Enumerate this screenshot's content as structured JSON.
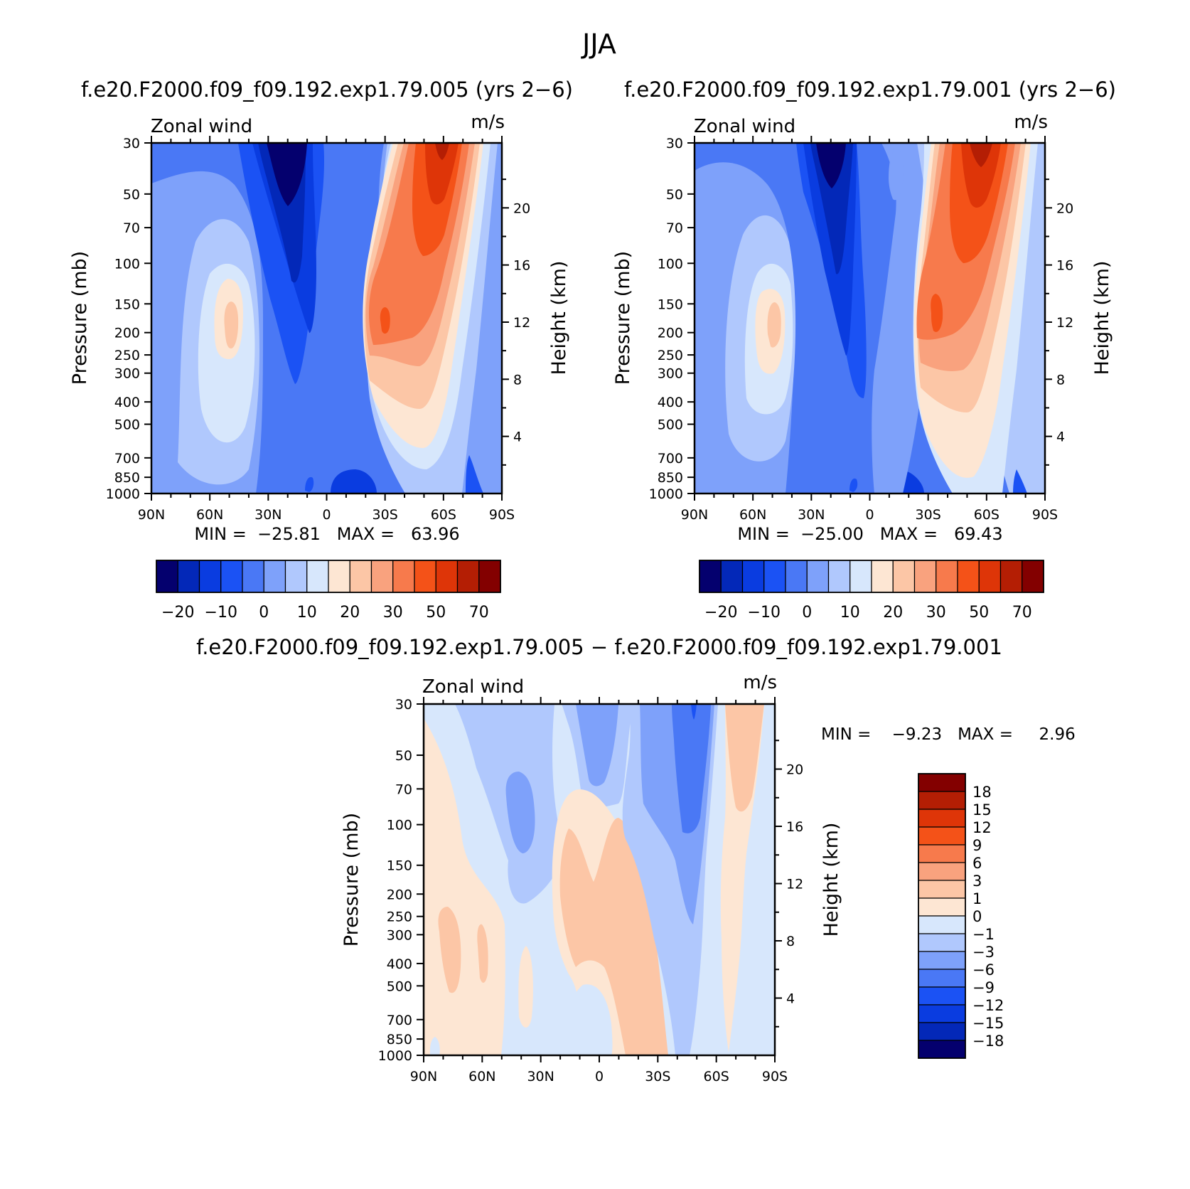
{
  "title": "JJA",
  "colors": {
    "abs": [
      "#04006e",
      "#0328b8",
      "#0a3ce0",
      "#1b52f4",
      "#4a78f5",
      "#7ea1fa",
      "#b0c8fd",
      "#d7e7fc",
      "#fde6d3",
      "#fcc6a6",
      "#f9a27e",
      "#f77a4c",
      "#f45218",
      "#de3508",
      "#b41e04",
      "#830000"
    ],
    "diff": [
      "#04006e",
      "#0328b8",
      "#0a3ce0",
      "#1b52f4",
      "#4a78f5",
      "#7ea1fa",
      "#b0c8fd",
      "#d7e7fc",
      "#fde6d3",
      "#fcc6a6",
      "#f9a27e",
      "#f77a4c",
      "#f45218",
      "#de3508",
      "#b41e04",
      "#830000"
    ]
  },
  "panels": [
    {
      "id": "p1",
      "case_title": "f.e20.F2000.f09_f09.192.exp1.79.005 (yrs 2−6)",
      "left_label": "Zonal wind",
      "right_label": "m/s",
      "min_max": "MIN =  −25.81   MAX =   63.96"
    },
    {
      "id": "p2",
      "case_title": "f.e20.F2000.f09_f09.192.exp1.79.001 (yrs 2−6)",
      "left_label": "Zonal wind",
      "right_label": "m/s",
      "min_max": "MIN =  −25.00   MAX =   69.43"
    },
    {
      "id": "p3",
      "case_title": "f.e20.F2000.f09_f09.192.exp1.79.005 − f.e20.F2000.f09_f09.192.exp1.79.001",
      "left_label": "Zonal wind",
      "right_label": "m/s",
      "min_max": "MIN =    −9.23   MAX =     2.96"
    }
  ],
  "chart_data": [
    {
      "type": "heatmap",
      "title": "f.e20.F2000.f09_f09.192.exp1.79.005 (yrs 2−6)",
      "xlabel": "",
      "ylabel": "Pressure (mb)",
      "ylabel_right": "Height (km)",
      "x_ticks": [
        "90N",
        "60N",
        "30N",
        "0",
        "30S",
        "60S",
        "90S"
      ],
      "y_ticks": [
        "30",
        "50",
        "70",
        "100",
        "150",
        "200",
        "250",
        "300",
        "400",
        "500",
        "700",
        "850",
        "1000"
      ],
      "y_ticks_right": [
        "4",
        "8",
        "12",
        "16",
        "20"
      ],
      "xlim": [
        -90,
        90
      ],
      "ylim": [
        1000,
        30
      ],
      "y_scale": "log",
      "colorbar_ticks": [
        "−20",
        "−10",
        "0",
        "10",
        "20",
        "30",
        "50",
        "70"
      ],
      "contour_levels": [
        -25,
        -20,
        -15,
        -10,
        -5,
        0,
        5,
        10,
        15,
        20,
        25,
        30,
        40,
        50,
        60,
        70
      ],
      "min": -25.81,
      "max": 63.96,
      "features": [
        {
          "lat": -18,
          "p": 30,
          "value": -25
        },
        {
          "lat": 5,
          "p": 30,
          "value": -15
        },
        {
          "lat": 15,
          "p": 700,
          "value": -12
        },
        {
          "lat": 45,
          "p": 200,
          "value": 22
        },
        {
          "lat": -28,
          "p": 200,
          "value": 40
        },
        {
          "lat": -55,
          "p": 30,
          "value": 63
        }
      ]
    },
    {
      "type": "heatmap",
      "title": "f.e20.F2000.f09_f09.192.exp1.79.001 (yrs 2−6)",
      "xlabel": "",
      "ylabel": "Pressure (mb)",
      "ylabel_right": "Height (km)",
      "x_ticks": [
        "90N",
        "60N",
        "30N",
        "0",
        "30S",
        "60S",
        "90S"
      ],
      "y_ticks": [
        "30",
        "50",
        "70",
        "100",
        "150",
        "200",
        "250",
        "300",
        "400",
        "500",
        "700",
        "850",
        "1000"
      ],
      "y_ticks_right": [
        "4",
        "8",
        "12",
        "16",
        "20"
      ],
      "xlim": [
        -90,
        90
      ],
      "ylim": [
        1000,
        30
      ],
      "y_scale": "log",
      "colorbar_ticks": [
        "−20",
        "−10",
        "0",
        "10",
        "20",
        "30",
        "50",
        "70"
      ],
      "contour_levels": [
        -25,
        -20,
        -15,
        -10,
        -5,
        0,
        5,
        10,
        15,
        20,
        25,
        30,
        40,
        50,
        60,
        70
      ],
      "min": -25.0,
      "max": 69.43,
      "features": [
        {
          "lat": -18,
          "p": 30,
          "value": -25
        },
        {
          "lat": 45,
          "p": 200,
          "value": 21
        },
        {
          "lat": -30,
          "p": 200,
          "value": 55
        },
        {
          "lat": -55,
          "p": 30,
          "value": 69
        }
      ]
    },
    {
      "type": "heatmap",
      "title": "f.e20.F2000.f09_f09.192.exp1.79.005 − f.e20.F2000.f09_f09.192.exp1.79.001",
      "xlabel": "",
      "ylabel": "Pressure (mb)",
      "ylabel_right": "Height (km)",
      "x_ticks": [
        "90N",
        "60N",
        "30N",
        "0",
        "30S",
        "60S",
        "90S"
      ],
      "y_ticks": [
        "30",
        "50",
        "70",
        "100",
        "150",
        "200",
        "250",
        "300",
        "400",
        "500",
        "700",
        "850",
        "1000"
      ],
      "y_ticks_right": [
        "4",
        "8",
        "12",
        "16",
        "20"
      ],
      "xlim": [
        -90,
        90
      ],
      "ylim": [
        1000,
        30
      ],
      "y_scale": "log",
      "colorbar_ticks": [
        "18",
        "15",
        "12",
        "9",
        "6",
        "3",
        "1",
        "0",
        "−1",
        "−3",
        "−6",
        "−9",
        "−12",
        "−15",
        "−18"
      ],
      "contour_levels": [
        -18,
        -15,
        -12,
        -9,
        -6,
        -3,
        -1,
        0,
        1,
        3,
        6,
        9,
        12,
        15,
        18
      ],
      "min": -9.23,
      "max": 2.96,
      "features": [
        {
          "lat": -48,
          "p": 70,
          "value": -9
        },
        {
          "lat": 40,
          "p": 100,
          "value": -5
        },
        {
          "lat": 0,
          "p": 300,
          "value": 2
        },
        {
          "lat": -65,
          "p": 50,
          "value": 2
        }
      ]
    }
  ]
}
